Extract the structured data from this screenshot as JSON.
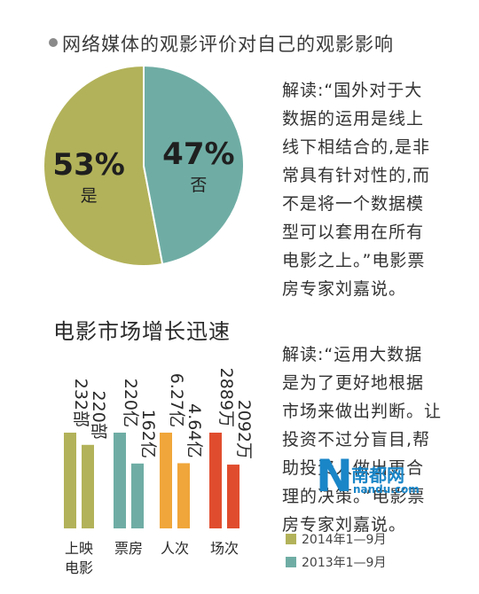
{
  "chart_data": [
    {
      "type": "pie",
      "title": "网络媒体的观影评价对自己的观影影响",
      "slices": [
        {
          "label": "是",
          "value": 53,
          "value_label": "53%",
          "color": "#b2b25a"
        },
        {
          "label": "否",
          "value": 47,
          "value_label": "47%",
          "color": "#6fada4"
        }
      ],
      "note": [
        "解读:“国外对于大",
        "数据的运用是线上",
        "线下相结合的,是非",
        "常具有针对性的,而",
        "不是将一个数据模",
        "型可以套用在所有",
        "电影之上。”电影票",
        "房专家刘嘉说。"
      ]
    },
    {
      "type": "bar",
      "title": "电影市场增长迅速",
      "categories": [
        "上映电影",
        "票房",
        "人次",
        "场次"
      ],
      "series": [
        {
          "name": "2014年1-9月",
          "values": [
            232,
            220,
            6.27,
            2889
          ],
          "labels": [
            "232部",
            "220亿",
            "6.27亿",
            "2889万"
          ]
        },
        {
          "name": "2013年1-9月",
          "values": [
            220,
            162,
            4.64,
            2092
          ],
          "labels": [
            "220部",
            "162亿",
            "4.64亿",
            "2092万"
          ]
        }
      ],
      "category_colors": [
        [
          "#b2b25a",
          "#b2b25a"
        ],
        [
          "#6fada4",
          "#6fada4"
        ],
        [
          "#f0a63a",
          "#f0a63a"
        ],
        [
          "#e04d2e",
          "#e04d2e"
        ]
      ],
      "legend": [
        {
          "label": "2014年1—9月",
          "color": "#b2b25a"
        },
        {
          "label": "2013年1—9月",
          "color": "#6fada4"
        }
      ],
      "legend_position": "bottom-right",
      "note": [
        "解读:“运用大数据",
        "是为了更好地根据",
        "市场来做出判断。让",
        "投资不过分盲目,帮",
        "助投资人做出更合",
        "理的决策。”电影票",
        "房专家刘嘉说。"
      ]
    }
  ],
  "watermark": {
    "letter": "N",
    "name": "南都网",
    "url": "nandu.com"
  }
}
